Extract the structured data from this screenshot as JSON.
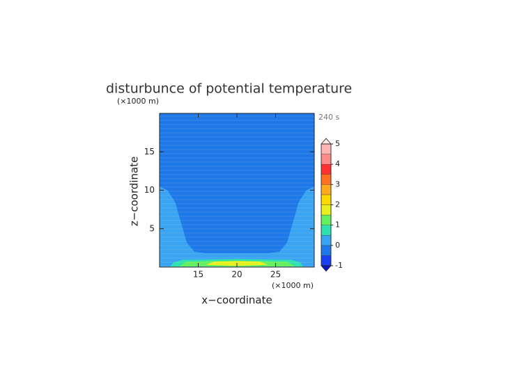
{
  "chart_data": {
    "type": "contour",
    "title": "disturbunce of potential temperature",
    "x_label": "x−coordinate",
    "y_label": "z−coordinate",
    "x_unit": "(×1000 m)",
    "y_unit": "(×1000 m)",
    "annotation": "240 s",
    "xlim": [
      10,
      30
    ],
    "ylim": [
      0,
      20
    ],
    "xticks": [
      15,
      20,
      25
    ],
    "yticks": [
      5,
      10,
      15
    ],
    "colorbar": {
      "levels": [
        -1,
        -0.5,
        0,
        0.5,
        1,
        1.5,
        2,
        2.5,
        3,
        3.5,
        4,
        4.5,
        5
      ],
      "colors": [
        "#1b3ef0",
        "#1f78e8",
        "#3aa4f2",
        "#2fe0b0",
        "#66f060",
        "#e8f020",
        "#ffd800",
        "#ffa820",
        "#ff7020",
        "#ff3030",
        "#ff8a8a",
        "#ffb4b4"
      ],
      "ticks": [
        -1,
        0,
        1,
        2,
        3,
        4,
        5
      ],
      "extend_colors": [
        "#0a18c8",
        "#ffe4e4"
      ]
    },
    "regions": [
      {
        "level": -0.5,
        "points": [
          [
            10,
            0
          ],
          [
            10,
            20
          ],
          [
            30,
            20
          ],
          [
            30,
            0
          ]
        ]
      },
      {
        "level": 0,
        "points": [
          [
            10,
            0
          ],
          [
            10,
            10.5
          ],
          [
            11,
            10
          ],
          [
            12,
            8.5
          ],
          [
            13,
            5
          ],
          [
            13.5,
            3.2
          ],
          [
            14.5,
            2
          ],
          [
            16,
            1.8
          ],
          [
            24,
            1.8
          ],
          [
            25.5,
            2
          ],
          [
            26.5,
            3.2
          ],
          [
            27,
            5
          ],
          [
            28,
            8.5
          ],
          [
            29,
            10
          ],
          [
            30,
            10.5
          ],
          [
            30,
            0
          ]
        ]
      },
      {
        "level": 0.5,
        "points": [
          [
            11.3,
            0
          ],
          [
            11.8,
            0.6
          ],
          [
            13,
            0.95
          ],
          [
            20,
            1.05
          ],
          [
            27,
            0.95
          ],
          [
            28.2,
            0.6
          ],
          [
            28.6,
            0
          ]
        ]
      },
      {
        "level": 1,
        "points": [
          [
            12.5,
            0.1
          ],
          [
            13.5,
            0.7
          ],
          [
            20,
            0.85
          ],
          [
            26.5,
            0.7
          ],
          [
            27.5,
            0.1
          ],
          [
            20,
            0.05
          ]
        ]
      },
      {
        "level": 1.5,
        "points": [
          [
            16,
            0.3
          ],
          [
            17,
            0.7
          ],
          [
            20,
            0.78
          ],
          [
            23,
            0.7
          ],
          [
            24,
            0.3
          ],
          [
            20,
            0.15
          ]
        ]
      }
    ]
  }
}
